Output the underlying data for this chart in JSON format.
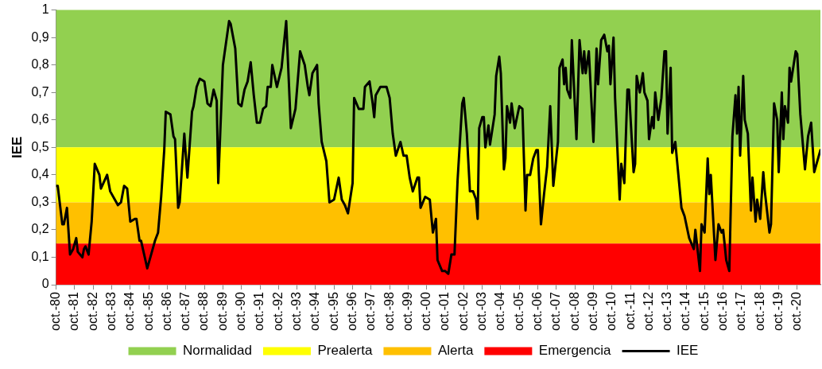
{
  "chart_data": {
    "type": "line",
    "ylabel": "IEE",
    "x": [
      "1980-10",
      "1980-11",
      "1981-02",
      "1981-03",
      "1981-05",
      "1981-07",
      "1981-09",
      "1981-11",
      "1981-12",
      "1982-03",
      "1982-04",
      "1982-05",
      "1982-07",
      "1982-09",
      "1982-11",
      "1983-02",
      "1983-03",
      "1983-07",
      "1983-09",
      "1983-12",
      "1984-02",
      "1984-04",
      "1984-06",
      "1984-08",
      "1984-10",
      "1985-01",
      "1985-02",
      "1985-04",
      "1985-05",
      "1985-09",
      "1985-11",
      "1986-02",
      "1986-04",
      "1986-06",
      "1986-08",
      "1986-09",
      "1986-12",
      "1987-02",
      "1987-03",
      "1987-05",
      "1987-06",
      "1987-09",
      "1987-11",
      "1988-02",
      "1988-03",
      "1988-05",
      "1988-07",
      "1988-10",
      "1988-12",
      "1989-02",
      "1989-04",
      "1989-06",
      "1989-07",
      "1989-10",
      "1990-02",
      "1990-03",
      "1990-06",
      "1990-08",
      "1990-10",
      "1990-12",
      "1991-02",
      "1991-04",
      "1991-06",
      "1991-08",
      "1991-10",
      "1991-12",
      "1992-02",
      "1992-03",
      "1992-05",
      "1992-06",
      "1992-09",
      "1992-12",
      "1993-03",
      "1993-06",
      "1993-09",
      "1993-12",
      "1994-03",
      "1994-05",
      "1994-06",
      "1994-08",
      "1994-11",
      "1994-12",
      "1995-02",
      "1995-05",
      "1995-07",
      "1995-10",
      "1996-01",
      "1996-03",
      "1996-05",
      "1996-07",
      "1996-10",
      "1996-11",
      "1997-02",
      "1997-05",
      "1997-06",
      "1997-09",
      "1997-11",
      "1997-12",
      "1998-01",
      "1998-04",
      "1998-08",
      "1998-10",
      "1998-12",
      "1999-02",
      "1999-05",
      "1999-07",
      "1999-09",
      "1999-11",
      "2000-01",
      "2000-04",
      "2000-05",
      "2000-06",
      "2000-09",
      "2000-12",
      "2001-02",
      "2001-04",
      "2001-05",
      "2001-08",
      "2001-10",
      "2001-12",
      "2002-02",
      "2002-04",
      "2002-06",
      "2002-09",
      "2002-10",
      "2002-12",
      "2003-02",
      "2003-04",
      "2003-06",
      "2003-07",
      "2003-08",
      "2003-10",
      "2003-11",
      "2003-12",
      "2004-02",
      "2004-03",
      "2004-06",
      "2004-07",
      "2004-09",
      "2004-10",
      "2004-12",
      "2005-01",
      "2005-02",
      "2005-04",
      "2005-05",
      "2005-07",
      "2005-10",
      "2005-12",
      "2006-02",
      "2006-03",
      "2006-05",
      "2006-07",
      "2006-09",
      "2006-10",
      "2006-12",
      "2007-02",
      "2007-04",
      "2007-06",
      "2007-08",
      "2007-11",
      "2007-12",
      "2008-02",
      "2008-03",
      "2008-04",
      "2008-05",
      "2008-07",
      "2008-08",
      "2008-11",
      "2009-01",
      "2009-03",
      "2009-04",
      "2009-05",
      "2009-07",
      "2009-08",
      "2009-10",
      "2009-12",
      "2010-01",
      "2010-03",
      "2010-05",
      "2010-07",
      "2010-08",
      "2010-09",
      "2010-11",
      "2010-12",
      "2011-03",
      "2011-04",
      "2011-06",
      "2011-08",
      "2011-09",
      "2011-12",
      "2012-01",
      "2012-02",
      "2012-04",
      "2012-06",
      "2012-07",
      "2012-09",
      "2012-10",
      "2012-12",
      "2013-01",
      "2013-02",
      "2013-04",
      "2013-06",
      "2013-08",
      "2013-09",
      "2013-10",
      "2013-12",
      "2014-01",
      "2014-03",
      "2014-07",
      "2014-09",
      "2014-12",
      "2015-03",
      "2015-04",
      "2015-07",
      "2015-08",
      "2015-10",
      "2015-12",
      "2016-01",
      "2016-02",
      "2016-05",
      "2016-07",
      "2016-09",
      "2016-10",
      "2016-12",
      "2017-02",
      "2017-04",
      "2017-06",
      "2017-07",
      "2017-08",
      "2017-09",
      "2017-11",
      "2017-12",
      "2018-02",
      "2018-04",
      "2018-05",
      "2018-07",
      "2018-08",
      "2018-10",
      "2018-12",
      "2019-01",
      "2019-04",
      "2019-05",
      "2019-07",
      "2019-09",
      "2019-10",
      "2019-12",
      "2020-01",
      "2020-02",
      "2020-04",
      "2020-05",
      "2020-06",
      "2020-09",
      "2020-10",
      "2020-12",
      "2021-03",
      "2021-05",
      "2021-07",
      "2021-09",
      "2021-11",
      "2022-01"
    ],
    "series": [
      {
        "name": "IEE",
        "color": "#000000",
        "values": [
          0.36,
          0.36,
          0.22,
          0.22,
          0.28,
          0.11,
          0.13,
          0.17,
          0.12,
          0.1,
          0.13,
          0.14,
          0.11,
          0.23,
          0.44,
          0.4,
          0.35,
          0.4,
          0.34,
          0.31,
          0.29,
          0.3,
          0.36,
          0.35,
          0.23,
          0.24,
          0.24,
          0.16,
          0.16,
          0.06,
          0.1,
          0.16,
          0.19,
          0.32,
          0.49,
          0.63,
          0.62,
          0.54,
          0.53,
          0.28,
          0.3,
          0.55,
          0.39,
          0.63,
          0.65,
          0.72,
          0.75,
          0.74,
          0.66,
          0.65,
          0.71,
          0.67,
          0.37,
          0.8,
          0.96,
          0.95,
          0.86,
          0.66,
          0.65,
          0.71,
          0.74,
          0.81,
          0.69,
          0.59,
          0.59,
          0.64,
          0.65,
          0.72,
          0.72,
          0.8,
          0.72,
          0.79,
          0.96,
          0.57,
          0.64,
          0.85,
          0.8,
          0.72,
          0.69,
          0.77,
          0.8,
          0.66,
          0.52,
          0.45,
          0.3,
          0.31,
          0.39,
          0.31,
          0.29,
          0.26,
          0.37,
          0.68,
          0.64,
          0.64,
          0.72,
          0.74,
          0.66,
          0.61,
          0.69,
          0.72,
          0.72,
          0.68,
          0.55,
          0.47,
          0.52,
          0.47,
          0.47,
          0.39,
          0.34,
          0.39,
          0.39,
          0.28,
          0.32,
          0.31,
          0.19,
          0.24,
          0.09,
          0.05,
          0.05,
          0.04,
          0.11,
          0.11,
          0.38,
          0.66,
          0.68,
          0.55,
          0.34,
          0.34,
          0.31,
          0.24,
          0.57,
          0.61,
          0.61,
          0.5,
          0.58,
          0.51,
          0.62,
          0.76,
          0.83,
          0.77,
          0.42,
          0.46,
          0.65,
          0.59,
          0.66,
          0.57,
          0.65,
          0.64,
          0.27,
          0.4,
          0.4,
          0.46,
          0.49,
          0.49,
          0.22,
          0.33,
          0.43,
          0.65,
          0.36,
          0.52,
          0.79,
          0.82,
          0.73,
          0.79,
          0.71,
          0.68,
          0.89,
          0.53,
          0.89,
          0.77,
          0.85,
          0.77,
          0.85,
          0.74,
          0.52,
          0.86,
          0.73,
          0.89,
          0.91,
          0.85,
          0.87,
          0.73,
          0.9,
          0.68,
          0.31,
          0.44,
          0.37,
          0.71,
          0.71,
          0.41,
          0.44,
          0.76,
          0.7,
          0.77,
          0.7,
          0.67,
          0.53,
          0.61,
          0.57,
          0.7,
          0.6,
          0.68,
          0.85,
          0.85,
          0.55,
          0.79,
          0.48,
          0.52,
          0.28,
          0.25,
          0.17,
          0.13,
          0.2,
          0.05,
          0.22,
          0.19,
          0.46,
          0.33,
          0.4,
          0.09,
          0.22,
          0.19,
          0.2,
          0.09,
          0.05,
          0.54,
          0.69,
          0.55,
          0.72,
          0.47,
          0.76,
          0.6,
          0.55,
          0.27,
          0.39,
          0.23,
          0.31,
          0.24,
          0.41,
          0.34,
          0.19,
          0.22,
          0.66,
          0.6,
          0.41,
          0.7,
          0.53,
          0.65,
          0.59,
          0.79,
          0.74,
          0.85,
          0.84,
          0.62,
          0.42,
          0.54,
          0.59,
          0.41,
          0.45,
          0.49
        ]
      }
    ],
    "xlim": [
      "1980-10",
      "2022-01"
    ],
    "xticks": [
      {
        "value": "1980-10",
        "label": "oct.-80"
      },
      {
        "value": "1981-10",
        "label": "oct.-81"
      },
      {
        "value": "1982-10",
        "label": "oct.-82"
      },
      {
        "value": "1983-10",
        "label": "oct.-83"
      },
      {
        "value": "1984-10",
        "label": "oct.-84"
      },
      {
        "value": "1985-10",
        "label": "oct.-85"
      },
      {
        "value": "1986-10",
        "label": "oct.-86"
      },
      {
        "value": "1987-10",
        "label": "oct.-87"
      },
      {
        "value": "1988-10",
        "label": "oct.-88"
      },
      {
        "value": "1989-10",
        "label": "oct.-89"
      },
      {
        "value": "1990-10",
        "label": "oct.-90"
      },
      {
        "value": "1991-10",
        "label": "oct.-91"
      },
      {
        "value": "1992-10",
        "label": "oct.-92"
      },
      {
        "value": "1993-10",
        "label": "oct.-93"
      },
      {
        "value": "1994-10",
        "label": "oct.-94"
      },
      {
        "value": "1995-10",
        "label": "oct.-95"
      },
      {
        "value": "1996-10",
        "label": "oct.-96"
      },
      {
        "value": "1997-10",
        "label": "oct.-97"
      },
      {
        "value": "1998-10",
        "label": "oct.-98"
      },
      {
        "value": "1999-10",
        "label": "oct.-99"
      },
      {
        "value": "2000-10",
        "label": "oct.-00"
      },
      {
        "value": "2001-10",
        "label": "oct.-01"
      },
      {
        "value": "2002-10",
        "label": "oct.-02"
      },
      {
        "value": "2003-10",
        "label": "oct.-03"
      },
      {
        "value": "2004-10",
        "label": "oct.-04"
      },
      {
        "value": "2005-10",
        "label": "oct.-05"
      },
      {
        "value": "2006-10",
        "label": "oct.-06"
      },
      {
        "value": "2007-10",
        "label": "oct.-07"
      },
      {
        "value": "2008-10",
        "label": "oct.-08"
      },
      {
        "value": "2009-10",
        "label": "oct.-09"
      },
      {
        "value": "2010-10",
        "label": "oct.-10"
      },
      {
        "value": "2011-10",
        "label": "oct.-11"
      },
      {
        "value": "2012-10",
        "label": "oct.-12"
      },
      {
        "value": "2013-10",
        "label": "oct.-13"
      },
      {
        "value": "2014-10",
        "label": "oct.-14"
      },
      {
        "value": "2015-10",
        "label": "oct.-15"
      },
      {
        "value": "2016-10",
        "label": "oct.-16"
      },
      {
        "value": "2017-10",
        "label": "oct.-17"
      },
      {
        "value": "2018-10",
        "label": "oct.-18"
      },
      {
        "value": "2019-10",
        "label": "oct.-19"
      },
      {
        "value": "2020-10",
        "label": "oct.-20"
      }
    ],
    "ylim": [
      0,
      1
    ],
    "yticks": [
      0,
      {
        "value": 0.1,
        "label": "0,1"
      },
      {
        "value": 0.2,
        "label": "0,2"
      },
      {
        "value": 0.3,
        "label": "0,3"
      },
      {
        "value": 0.4,
        "label": "0,4"
      },
      {
        "value": 0.5,
        "label": "0,5"
      },
      {
        "value": 0.6,
        "label": "0,6"
      },
      {
        "value": 0.7,
        "label": "0,7"
      },
      {
        "value": 0.8,
        "label": "0,8"
      },
      {
        "value": 0.9,
        "label": "0,9"
      },
      1
    ],
    "bands": [
      {
        "axis": "y",
        "from": 0.5,
        "to": 1,
        "label": "Normalidad",
        "color": "#92d050"
      },
      {
        "axis": "y",
        "from": 0.3,
        "to": 0.5,
        "label": "Prealerta",
        "color": "#ffff00"
      },
      {
        "axis": "y",
        "from": 0.15,
        "to": 0.3,
        "label": "Alerta",
        "color": "#ffc000"
      },
      {
        "axis": "y",
        "from": 0,
        "to": 0.15,
        "label": "Emergencia",
        "color": "#ff0000"
      }
    ],
    "grid": false,
    "legend": "bottom",
    "marker": "none",
    "line_style": "solid"
  }
}
